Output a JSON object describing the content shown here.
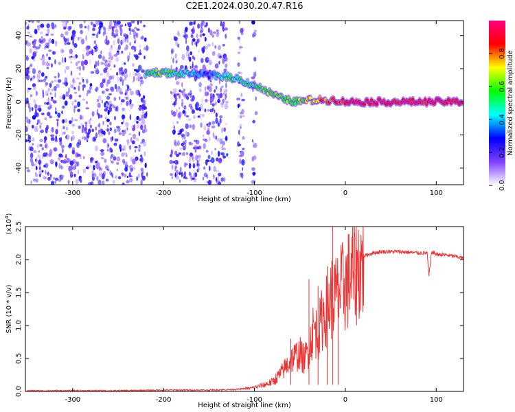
{
  "title": "C2E1.2024.030.20.47.R16",
  "chart_data": [
    {
      "type": "heatmap",
      "xlabel": "Height of straight line (km)",
      "ylabel": "Frequency (Hz)",
      "xlim": [
        -352,
        130
      ],
      "ylim": [
        -50,
        49
      ],
      "xticks": [
        -300,
        -200,
        -100,
        0,
        100
      ],
      "yticks": [
        -40,
        -20,
        0,
        20,
        40
      ],
      "colorbar": {
        "label": "Normalized spectral amplitude",
        "range": [
          0.0,
          1.0
        ],
        "ticks": [
          "0.0",
          "0.2",
          "0.4",
          "0.6",
          "0.8"
        ],
        "colors": [
          "#ffffff",
          "#7f3fff",
          "#0000ff",
          "#00ffff",
          "#00ff00",
          "#ffff00",
          "#ff0000",
          "#ff0080"
        ]
      },
      "ridge": {
        "x": [
          -220,
          -205,
          -190,
          -170,
          -150,
          -140,
          -120,
          -100,
          -85,
          -70,
          -55,
          -40,
          -25,
          -10,
          0,
          50,
          100,
          130
        ],
        "y": [
          17,
          18,
          17,
          17,
          16,
          16,
          14,
          10,
          6,
          2,
          0,
          1,
          1,
          1,
          0,
          0,
          0,
          0
        ],
        "amplitude": [
          0.5,
          0.6,
          0.5,
          0.4,
          0.3,
          0.5,
          0.5,
          0.5,
          0.6,
          0.6,
          0.6,
          0.7,
          0.8,
          0.8,
          0.9,
          0.9,
          0.9,
          0.9
        ]
      },
      "noise_bands_x": [
        [
          -352,
          -218
        ],
        [
          -192,
          -130
        ],
        [
          -118,
          -112
        ],
        [
          -102,
          -98
        ]
      ],
      "noise_amplitude": 0.25,
      "grid": false
    },
    {
      "type": "line",
      "xlabel": "Height of straight line (km)",
      "ylabel": "SNR (10 * v/v)",
      "y_scale_label": "(x10",
      "y_scale_exp": "4",
      "y_scale_close": ")",
      "xlim": [
        -352,
        130
      ],
      "ylim": [
        0.0,
        2.5
      ],
      "xticks": [
        -300,
        -200,
        -100,
        0,
        100
      ],
      "yticks": [
        "0.0",
        "0.5",
        "1.0",
        "1.5",
        "2.0",
        "2.5"
      ],
      "series": [
        {
          "color": "#ee3333",
          "x": [
            -352,
            -300,
            -250,
            -200,
            -150,
            -120,
            -105,
            -95,
            -80,
            -70,
            -60,
            -50,
            -45,
            -40,
            -35,
            -30,
            -25,
            -20,
            -15,
            -10,
            -5,
            0,
            10,
            20,
            30,
            40,
            50,
            60,
            70,
            80,
            90,
            92,
            95,
            100,
            110,
            120,
            130
          ],
          "y": [
            0.01,
            0.01,
            0.01,
            0.02,
            0.02,
            0.03,
            0.05,
            0.08,
            0.15,
            0.3,
            0.5,
            0.6,
            0.5,
            0.7,
            1.0,
            0.9,
            1.2,
            1.3,
            1.5,
            1.5,
            1.6,
            1.7,
            1.9,
            2.05,
            2.1,
            2.12,
            2.12,
            2.12,
            2.11,
            2.1,
            2.1,
            1.75,
            2.12,
            2.08,
            2.07,
            2.05,
            2.02
          ],
          "spikes": [
            {
              "x": -14,
              "y": 2.5
            },
            {
              "x": -40,
              "y": 1.7
            },
            {
              "x": -30,
              "y": 1.6
            },
            {
              "x": -60,
              "y": 0.8
            },
            {
              "x": -20,
              "y": 1.9
            },
            {
              "x": -8,
              "y": 1.8
            }
          ]
        }
      ],
      "grid": false
    }
  ]
}
